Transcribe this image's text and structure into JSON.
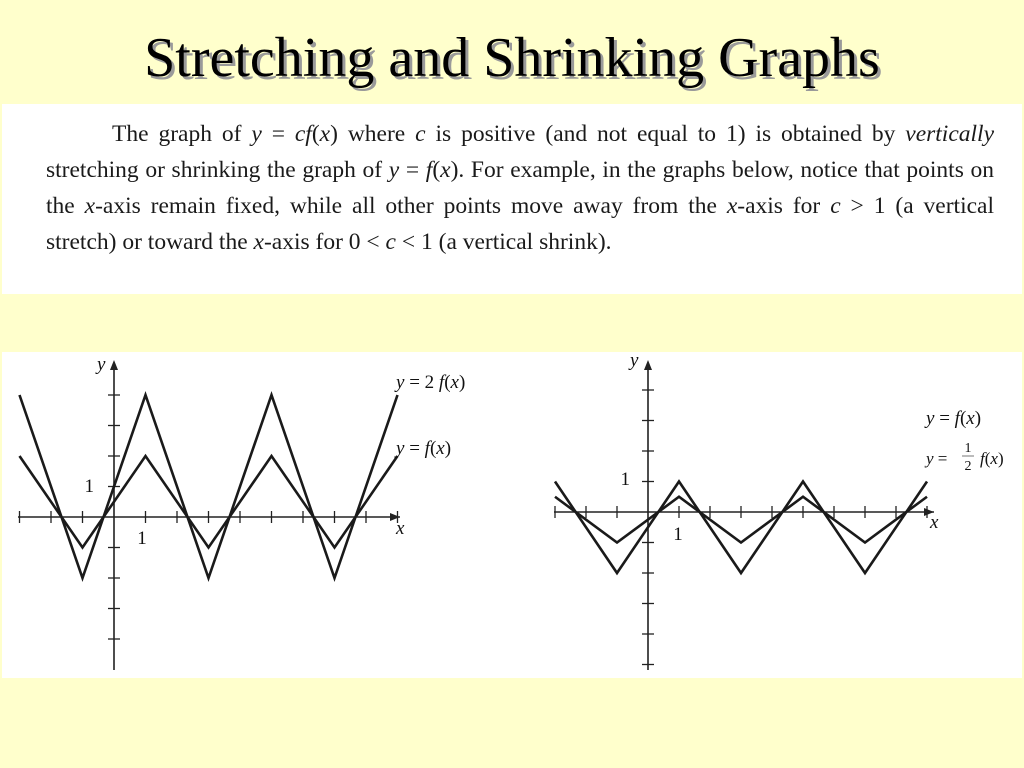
{
  "slide": {
    "title": "Stretching and Shrinking Graphs",
    "paragraph": [
      {
        "text": "The graph of ",
        "style": "normal"
      },
      {
        "text": "y",
        "style": "italic"
      },
      {
        "text": " = ",
        "style": "normal"
      },
      {
        "text": "cf",
        "style": "italic"
      },
      {
        "text": "(",
        "style": "normal"
      },
      {
        "text": "x",
        "style": "italic"
      },
      {
        "text": ") where ",
        "style": "normal"
      },
      {
        "text": "c",
        "style": "italic"
      },
      {
        "text": " is positive (and not equal to 1) is obtained by ",
        "style": "normal"
      },
      {
        "text": "vertically",
        "style": "italic"
      },
      {
        "text": " stretching or shrinking the graph of ",
        "style": "normal"
      },
      {
        "text": "y",
        "style": "italic"
      },
      {
        "text": " = ",
        "style": "normal"
      },
      {
        "text": "f",
        "style": "italic"
      },
      {
        "text": "(",
        "style": "normal"
      },
      {
        "text": "x",
        "style": "italic"
      },
      {
        "text": "). For example, in the graphs below, notice that points on the ",
        "style": "normal"
      },
      {
        "text": "x",
        "style": "italic"
      },
      {
        "text": "-axis remain fixed, while all other points move away from the ",
        "style": "normal"
      },
      {
        "text": "x",
        "style": "italic"
      },
      {
        "text": "-axis for ",
        "style": "normal"
      },
      {
        "text": "c",
        "style": "italic"
      },
      {
        "text": " > 1 (a vertical stretch) or toward the ",
        "style": "normal"
      },
      {
        "text": "x",
        "style": "italic"
      },
      {
        "text": "-axis for 0 < ",
        "style": "normal"
      },
      {
        "text": "c",
        "style": "italic"
      },
      {
        "text": " < 1 (a vertical shrink).",
        "style": "normal"
      }
    ]
  },
  "chart_data": [
    {
      "type": "line",
      "xlabel": "x",
      "ylabel": "y",
      "x_tick_label": "1",
      "y_tick_label": "1",
      "xlim": [
        -3.2,
        9.1
      ],
      "ylim": [
        -4.1,
        5.0
      ],
      "series": [
        {
          "name": "y = 2 f(x)",
          "x": [
            -3,
            -1,
            1,
            3,
            5,
            7,
            9
          ],
          "y": [
            4,
            -2,
            4,
            -2,
            4,
            -2,
            4
          ]
        },
        {
          "name": "y = f(x)",
          "x": [
            -3,
            -1,
            1,
            3,
            5,
            7,
            9
          ],
          "y": [
            2,
            -1,
            2,
            -1,
            2,
            -1,
            2
          ]
        }
      ]
    },
    {
      "type": "line",
      "xlabel": "x",
      "ylabel": "y",
      "x_tick_label": "1",
      "y_tick_label": "1",
      "xlim": [
        -3.2,
        9.1
      ],
      "ylim": [
        -5.2,
        5.0
      ],
      "series": [
        {
          "name": "y = f(x)",
          "x": [
            -3,
            -1,
            1,
            3,
            5,
            7,
            9
          ],
          "y": [
            1,
            -2,
            1,
            -2,
            1,
            -2,
            1
          ]
        },
        {
          "name": "y = 1/2 f(x)",
          "x": [
            -3,
            -1,
            1,
            3,
            5,
            7,
            9
          ],
          "y": [
            0.5,
            -1,
            0.5,
            -1,
            0.5,
            -1,
            0.5
          ]
        }
      ]
    }
  ]
}
